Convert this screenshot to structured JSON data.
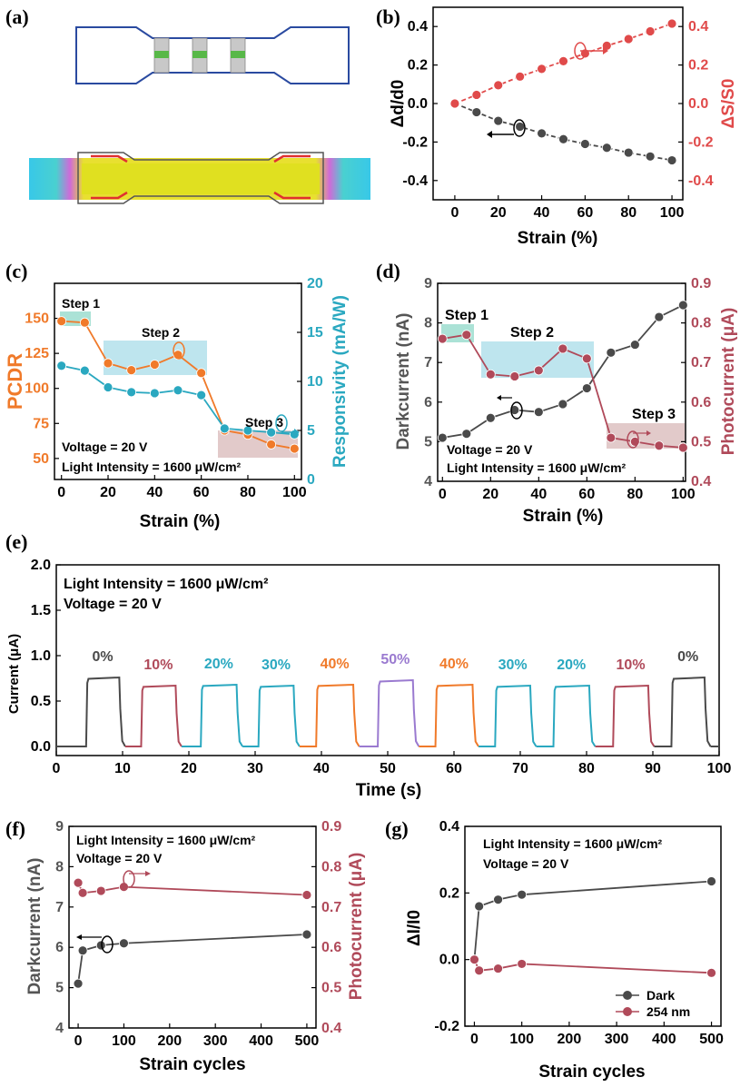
{
  "figure": {
    "panel_labels": [
      "(a)",
      "(b)",
      "(c)",
      "(d)",
      "(e)",
      "(f)",
      "(g)"
    ]
  },
  "colors": {
    "gray": "#4a4a4a",
    "red": "#e04a4a",
    "orange": "#f07a2a",
    "teal": "#2aa8c0",
    "maroon": "#b04a5a",
    "purple": "#9a7ad0",
    "highlight_green": "#8fd8c8",
    "highlight_blue": "#a8dce8",
    "highlight_pink": "#d8b8b8"
  },
  "chart_data": [
    {
      "id": "b",
      "type": "line",
      "title": "",
      "xlabel": "Strain (%)",
      "ylabel": "Δd/d0",
      "ylabel_right": "ΔS/S0",
      "xlim": [
        -10,
        105
      ],
      "ylim": [
        -0.5,
        0.5
      ],
      "ylim_right": [
        -0.5,
        0.5
      ],
      "xticks": [
        "0",
        "20",
        "40",
        "60",
        "80",
        "100"
      ],
      "yticks": [
        "-0.4",
        "-0.2",
        "0.0",
        "0.2",
        "0.4"
      ],
      "yticks_right": [
        "-0.4",
        "-0.2",
        "0.0",
        "0.2",
        "0.4"
      ],
      "x": [
        0,
        10,
        20,
        30,
        40,
        50,
        60,
        70,
        80,
        90,
        100
      ],
      "series": [
        {
          "name": "Δd/d0",
          "axis": "left",
          "color": "#4a4a4a",
          "values": [
            0,
            -0.045,
            -0.09,
            -0.12,
            -0.155,
            -0.185,
            -0.21,
            -0.23,
            -0.255,
            -0.275,
            -0.295
          ]
        },
        {
          "name": "ΔS/S0",
          "axis": "right",
          "color": "#e04a4a",
          "values": [
            0,
            0.045,
            0.095,
            0.14,
            0.18,
            0.22,
            0.26,
            0.3,
            0.335,
            0.375,
            0.415
          ]
        }
      ]
    },
    {
      "id": "c",
      "type": "line",
      "xlabel": "Strain (%)",
      "ylabel": "PCDR",
      "ylabel_right": "Responsivity (mA/W)",
      "xlim": [
        -3,
        103
      ],
      "ylim": [
        35,
        175
      ],
      "ylim_right": [
        0,
        20
      ],
      "xticks": [
        "0",
        "20",
        "40",
        "60",
        "80",
        "100"
      ],
      "yticks": [
        "50",
        "75",
        "100",
        "125",
        "150"
      ],
      "yticks_right": [
        "0",
        "5",
        "10",
        "15",
        "20"
      ],
      "x": [
        0,
        10,
        20,
        30,
        40,
        50,
        60,
        70,
        80,
        90,
        100
      ],
      "series": [
        {
          "name": "PCDR",
          "axis": "left",
          "color": "#f07a2a",
          "values": [
            148,
            147,
            118,
            113,
            117,
            124,
            111,
            70,
            67,
            60,
            57
          ]
        },
        {
          "name": "Responsivity",
          "axis": "right",
          "color": "#2aa8c0",
          "values": [
            11.6,
            11.1,
            9.4,
            8.9,
            8.8,
            9.1,
            8.6,
            5.2,
            5.0,
            4.8,
            4.6
          ]
        }
      ],
      "annotations": [
        "Step 1",
        "Step 2",
        "Step 3",
        "Voltage = 20 V",
        "Light Intensity = 1600 μW/cm²"
      ]
    },
    {
      "id": "d",
      "type": "line",
      "xlabel": "Strain (%)",
      "ylabel": "Darkcurrent (nA)",
      "ylabel_right": "Photocurrent (μA)",
      "xlim": [
        -2,
        101
      ],
      "ylim": [
        4,
        9
      ],
      "ylim_right": [
        0.4,
        0.9
      ],
      "xticks": [
        "0",
        "20",
        "40",
        "60",
        "80",
        "100"
      ],
      "yticks": [
        "4",
        "5",
        "6",
        "7",
        "8",
        "9"
      ],
      "yticks_right": [
        "0.4",
        "0.5",
        "0.6",
        "0.7",
        "0.8",
        "0.9"
      ],
      "x": [
        0,
        10,
        20,
        30,
        40,
        50,
        60,
        70,
        80,
        90,
        100
      ],
      "series": [
        {
          "name": "Darkcurrent",
          "axis": "left",
          "color": "#4a4a4a",
          "values": [
            5.1,
            5.2,
            5.6,
            5.8,
            5.75,
            5.95,
            6.35,
            7.25,
            7.45,
            8.15,
            8.45
          ]
        },
        {
          "name": "Photocurrent",
          "axis": "right",
          "color": "#b04a5a",
          "values": [
            0.76,
            0.77,
            0.67,
            0.665,
            0.68,
            0.735,
            0.71,
            0.51,
            0.5,
            0.49,
            0.485
          ]
        }
      ],
      "annotations": [
        "Step 1",
        "Step 2",
        "Step 3",
        "Voltage = 20 V",
        "Light Intensity = 1600 μW/cm²"
      ]
    },
    {
      "id": "e",
      "type": "line",
      "xlabel": "Time (s)",
      "ylabel": "Current (μA)",
      "xlim": [
        0,
        100
      ],
      "ylim": [
        -0.1,
        2.0
      ],
      "xticks": [
        "0",
        "10",
        "20",
        "30",
        "40",
        "50",
        "60",
        "70",
        "80",
        "90",
        "100"
      ],
      "yticks": [
        "0.0",
        "0.5",
        "1.0",
        "1.5",
        "2.0"
      ],
      "pulses": [
        {
          "label": "0%",
          "start": 4.5,
          "end": 9.5,
          "peak": 0.76,
          "color": "#4a4a4a"
        },
        {
          "label": "10%",
          "start": 12.8,
          "end": 18.0,
          "peak": 0.67,
          "color": "#b04a5a"
        },
        {
          "label": "20%",
          "start": 21.8,
          "end": 27.2,
          "peak": 0.68,
          "color": "#2aa8c0"
        },
        {
          "label": "30%",
          "start": 30.5,
          "end": 35.8,
          "peak": 0.67,
          "color": "#2aa8c0"
        },
        {
          "label": "40%",
          "start": 39.2,
          "end": 44.8,
          "peak": 0.68,
          "color": "#f07a2a"
        },
        {
          "label": "50%",
          "start": 48.5,
          "end": 53.8,
          "peak": 0.73,
          "color": "#9a7ad0"
        },
        {
          "label": "40%",
          "start": 57.2,
          "end": 62.8,
          "peak": 0.68,
          "color": "#f07a2a"
        },
        {
          "label": "30%",
          "start": 66.2,
          "end": 71.5,
          "peak": 0.67,
          "color": "#2aa8c0"
        },
        {
          "label": "20%",
          "start": 75.0,
          "end": 80.4,
          "peak": 0.67,
          "color": "#2aa8c0"
        },
        {
          "label": "10%",
          "start": 84.0,
          "end": 89.3,
          "peak": 0.67,
          "color": "#b04a5a"
        },
        {
          "label": "0%",
          "start": 92.8,
          "end": 97.8,
          "peak": 0.76,
          "color": "#4a4a4a"
        }
      ],
      "annotations": [
        "Light Intensity = 1600 μW/cm²",
        "Voltage = 20 V"
      ]
    },
    {
      "id": "f",
      "type": "line",
      "xlabel": "Strain cycles",
      "ylabel": "Darkcurrent (nA)",
      "ylabel_right": "Photocurrent (μA)",
      "xlim": [
        -20,
        520
      ],
      "ylim": [
        4,
        9
      ],
      "ylim_right": [
        0.4,
        0.9
      ],
      "xticks": [
        "0",
        "100",
        "200",
        "300",
        "400",
        "500"
      ],
      "yticks": [
        "4",
        "5",
        "6",
        "7",
        "8",
        "9"
      ],
      "yticks_right": [
        "0.4",
        "0.5",
        "0.6",
        "0.7",
        "0.8",
        "0.9"
      ],
      "x": [
        0,
        10,
        50,
        100,
        500
      ],
      "series": [
        {
          "name": "Darkcurrent",
          "axis": "left",
          "color": "#4a4a4a",
          "values": [
            5.1,
            5.92,
            6.05,
            6.1,
            6.32
          ]
        },
        {
          "name": "Photocurrent",
          "axis": "right",
          "color": "#b04a5a",
          "values": [
            0.76,
            0.735,
            0.74,
            0.75,
            0.73
          ]
        }
      ],
      "annotations": [
        "Light Intensity = 1600 μW/cm²",
        "Voltage = 20 V"
      ]
    },
    {
      "id": "g",
      "type": "line",
      "xlabel": "Strain cycles",
      "ylabel": "ΔI/I0",
      "xlim": [
        -20,
        520
      ],
      "ylim": [
        -0.2,
        0.4
      ],
      "xticks": [
        "0",
        "100",
        "200",
        "300",
        "400",
        "500"
      ],
      "yticks": [
        "-0.2",
        "0.0",
        "0.2",
        "0.4"
      ],
      "x": [
        0,
        10,
        50,
        100,
        500
      ],
      "series": [
        {
          "name": "Dark",
          "color": "#4a4a4a",
          "values": [
            0,
            0.16,
            0.18,
            0.195,
            0.235
          ]
        },
        {
          "name": "254 nm",
          "color": "#b04a5a",
          "values": [
            0,
            -0.033,
            -0.027,
            -0.013,
            -0.04
          ]
        }
      ],
      "legend": [
        "Dark",
        "254 nm"
      ],
      "annotations": [
        "Light Intensity = 1600 μW/cm²",
        "Voltage = 20 V"
      ]
    }
  ]
}
